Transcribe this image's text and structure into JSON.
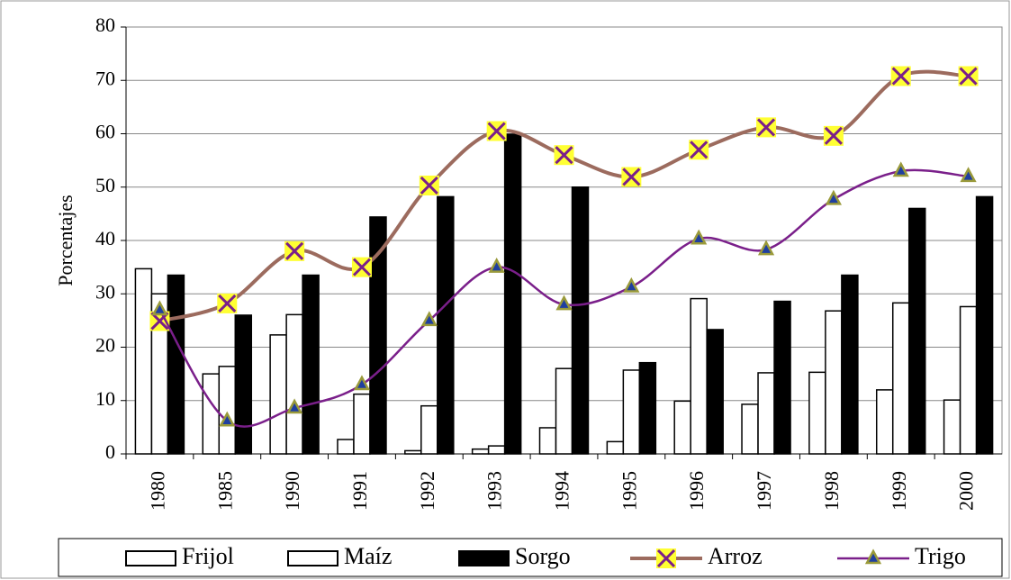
{
  "chart_data": {
    "type": "bar-line",
    "y_label": "Porcentajes",
    "categories": [
      "1980",
      "1985",
      "1990",
      "1991",
      "1992",
      "1993",
      "1994",
      "1995",
      "1996",
      "1997",
      "1998",
      "1999",
      "2000"
    ],
    "ylim": [
      0,
      80
    ],
    "yticks": [
      0,
      10,
      20,
      30,
      40,
      50,
      60,
      70,
      80
    ],
    "grid": true,
    "legend": "bottom",
    "series": [
      {
        "name": "Frijol",
        "type": "bar",
        "color": "#ffffff",
        "values": [
          34.7,
          15,
          22.3,
          2.7,
          0.6,
          0.9,
          4.9,
          2.3,
          9.9,
          9.3,
          15.3,
          12,
          10.1
        ]
      },
      {
        "name": "Maíz",
        "type": "bar",
        "color": "#ffffff",
        "values": [
          30,
          16.4,
          26.1,
          11.2,
          9,
          1.5,
          16,
          15.7,
          29.1,
          15.2,
          26.8,
          28.3,
          27.6
        ]
      },
      {
        "name": "Sorgo",
        "type": "bar",
        "color": "#000000",
        "values": [
          33.5,
          26,
          33.5,
          44.4,
          48.2,
          59.9,
          50,
          17.1,
          23.3,
          28.6,
          33.5,
          46,
          48.2
        ]
      },
      {
        "name": "Arroz",
        "type": "line",
        "color": "#9c6b5e",
        "values": [
          24.9,
          28.2,
          38,
          35,
          50.3,
          60.5,
          56,
          51.9,
          57,
          61.2,
          59.6,
          70.8,
          70.8
        ]
      },
      {
        "name": "Trigo",
        "type": "line",
        "color": "#7a1f8a",
        "values": [
          27,
          6.2,
          8.6,
          13,
          25,
          35,
          28,
          31.3,
          40.3,
          38.3,
          47.7,
          53,
          52
        ]
      }
    ]
  }
}
